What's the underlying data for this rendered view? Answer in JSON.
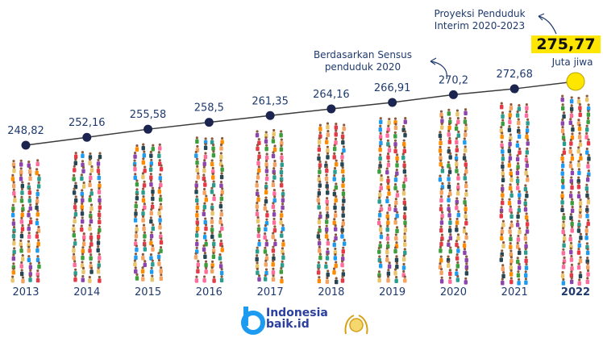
{
  "chart_data": {
    "type": "line",
    "title": "",
    "xlabel": "",
    "ylabel": "",
    "categories": [
      "2013",
      "2014",
      "2015",
      "2016",
      "2017",
      "2018",
      "2019",
      "2020",
      "2021",
      "2022"
    ],
    "values": [
      248.82,
      252.16,
      255.58,
      258.5,
      261.35,
      264.16,
      266.91,
      270.2,
      272.68,
      275.77
    ],
    "value_labels": [
      "248,82",
      "252,16",
      "255,58",
      "258,5",
      "261,35",
      "264,16",
      "266,91",
      "270,2",
      "272,68",
      "275,77"
    ],
    "highlight_category": "2022",
    "colors": {
      "line": "#3b3b3b",
      "marker": "#1b2550",
      "highlight_marker": "#ffe600",
      "label": "#1f3a6e",
      "year": "#1f3a6e"
    },
    "annotations": [
      {
        "id": "projection",
        "lines": [
          "Proyeksi Penduduk",
          "Interim 2020-2023"
        ],
        "target": "2022"
      },
      {
        "id": "census",
        "lines": [
          "Berdasarkan Sensus",
          "penduduk 2020"
        ],
        "target": "2020"
      }
    ],
    "highlight_value": "275,77",
    "unit": "Juta jiwa"
  },
  "brand": {
    "logo_letter": "b",
    "name_line1": "Indonesia",
    "name_line2": "baik.id",
    "seal_icon": "award-seal-icon"
  },
  "crowd_colors": [
    "#e63946",
    "#f4a261",
    "#2a9d8f",
    "#264653",
    "#e9c46a",
    "#8e44ad",
    "#1d9bf0",
    "#ff6b9a",
    "#3c9d3c",
    "#ff8c00"
  ]
}
